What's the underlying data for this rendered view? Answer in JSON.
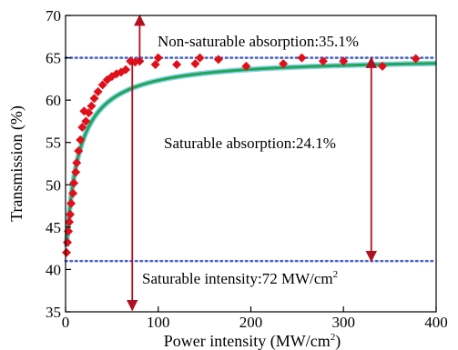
{
  "chart_data": {
    "type": "scatter",
    "xlabel": "Power intensity (MW/cm",
    "xlabel_sup": "2",
    "xlabel_tail": ")",
    "ylabel": "Transmission (%)",
    "xlim": [
      0,
      400
    ],
    "ylim": [
      35,
      70
    ],
    "xticks": [
      0,
      100,
      200,
      300,
      400
    ],
    "yticks": [
      35,
      40,
      45,
      50,
      55,
      60,
      65,
      70
    ],
    "grid": false,
    "series": [
      {
        "marker": "diamond",
        "color": "#e0101a",
        "points": [
          [
            1,
            42.0
          ],
          [
            2,
            43.2
          ],
          [
            3,
            44.5
          ],
          [
            4,
            45.6
          ],
          [
            5,
            46.5
          ],
          [
            6,
            47.8
          ],
          [
            8,
            49.0
          ],
          [
            9,
            50.2
          ],
          [
            11,
            51.5
          ],
          [
            12,
            52.6
          ],
          [
            14,
            54.0
          ],
          [
            16,
            55.3
          ],
          [
            18,
            56.8
          ],
          [
            20,
            58.7
          ],
          [
            22,
            57.5
          ],
          [
            25,
            58.5
          ],
          [
            28,
            59.3
          ],
          [
            31,
            60.2
          ],
          [
            35,
            61.0
          ],
          [
            40,
            61.8
          ],
          [
            45,
            62.4
          ],
          [
            50,
            62.8
          ],
          [
            55,
            63.1
          ],
          [
            60,
            63.3
          ],
          [
            65,
            63.6
          ],
          [
            70,
            64.6
          ],
          [
            75,
            64.5
          ],
          [
            80,
            64.6
          ],
          [
            97,
            64.2
          ],
          [
            100,
            65.0
          ],
          [
            120,
            64.2
          ],
          [
            140,
            64.3
          ],
          [
            145,
            65.0
          ],
          [
            165,
            64.8
          ],
          [
            195,
            64.0
          ],
          [
            235,
            64.3
          ],
          [
            255,
            65.0
          ],
          [
            278,
            64.6
          ],
          [
            300,
            64.6
          ],
          [
            342,
            64.0
          ],
          [
            378,
            64.9
          ]
        ]
      },
      {
        "type": "fit-line",
        "color": "#1fa84f",
        "glow": "#58b8e8",
        "model": {
          "t0": 41.0,
          "dt": 24.1,
          "isat": 13.0
        }
      }
    ],
    "reference_lines": [
      {
        "y": 65.0,
        "color": "#4a64c8",
        "style": "dotted"
      },
      {
        "y": 41.0,
        "color": "#4a64c8",
        "style": "dotted"
      }
    ],
    "arrows": [
      {
        "x": 80,
        "y_from": 64.5,
        "y_to": 70.0,
        "color": "#b01020"
      },
      {
        "x": 72,
        "y_from": 64.5,
        "y_to": 35.2,
        "color": "#b01020"
      },
      {
        "x": 330,
        "y_from": 65.0,
        "y_to": 41.0,
        "color": "#b01020",
        "double": true
      }
    ],
    "annotations": {
      "non_saturable": "Non-saturable absorption:35.1%",
      "saturable": "Saturable absorption:24.1%",
      "intensity_main": "Saturable intensity:72 MW/cm",
      "intensity_sup": "2"
    }
  }
}
